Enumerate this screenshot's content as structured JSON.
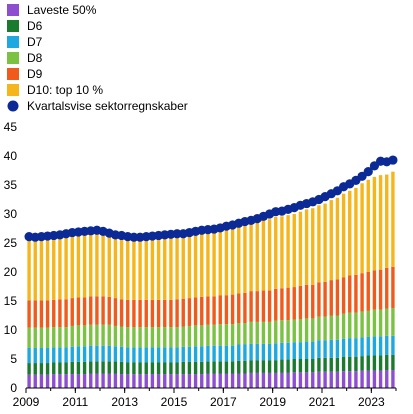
{
  "chart_data": {
    "type": "bar",
    "stacked": true,
    "title": "",
    "xlabel": "",
    "ylabel": "",
    "ylim": [
      0,
      45
    ],
    "yticks": [
      0,
      5,
      10,
      15,
      20,
      25,
      30,
      35,
      40,
      45
    ],
    "xtick_labels": [
      "2009",
      "2011",
      "2013",
      "2015",
      "2017",
      "2019",
      "2021",
      "2023"
    ],
    "legend_position": "top-left",
    "grid": false,
    "x": [
      "2009Q1",
      "2009Q2",
      "2009Q3",
      "2009Q4",
      "2010Q1",
      "2010Q2",
      "2010Q3",
      "2010Q4",
      "2011Q1",
      "2011Q2",
      "2011Q3",
      "2011Q4",
      "2012Q1",
      "2012Q2",
      "2012Q3",
      "2012Q4",
      "2013Q1",
      "2013Q2",
      "2013Q3",
      "2013Q4",
      "2014Q1",
      "2014Q2",
      "2014Q3",
      "2014Q4",
      "2015Q1",
      "2015Q2",
      "2015Q3",
      "2015Q4",
      "2016Q1",
      "2016Q2",
      "2016Q3",
      "2016Q4",
      "2017Q1",
      "2017Q2",
      "2017Q3",
      "2017Q4",
      "2018Q1",
      "2018Q2",
      "2018Q3",
      "2018Q4",
      "2019Q1",
      "2019Q2",
      "2019Q3",
      "2019Q4",
      "2020Q1",
      "2020Q2",
      "2020Q3",
      "2020Q4",
      "2021Q1",
      "2021Q2",
      "2021Q3",
      "2021Q4",
      "2022Q1",
      "2022Q2",
      "2022Q3",
      "2022Q4",
      "2023Q1",
      "2023Q2",
      "2023Q3",
      "2023Q4"
    ],
    "series": [
      {
        "name": "Laveste 50%",
        "type": "bar",
        "color": "#8d4fd0",
        "values": [
          2.3,
          2.3,
          2.3,
          2.3,
          2.4,
          2.4,
          2.4,
          2.4,
          2.4,
          2.4,
          2.5,
          2.5,
          2.5,
          2.5,
          2.5,
          2.4,
          2.4,
          2.4,
          2.4,
          2.4,
          2.4,
          2.4,
          2.4,
          2.4,
          2.4,
          2.4,
          2.4,
          2.4,
          2.4,
          2.5,
          2.5,
          2.5,
          2.5,
          2.5,
          2.5,
          2.5,
          2.6,
          2.6,
          2.6,
          2.6,
          2.6,
          2.6,
          2.6,
          2.7,
          2.7,
          2.7,
          2.7,
          2.8,
          2.8,
          2.8,
          2.8,
          2.9,
          2.9,
          2.9,
          3.0,
          3.0,
          3.0,
          3.0,
          3.1,
          3.1
        ]
      },
      {
        "name": "D6",
        "type": "bar",
        "color": "#1a7a2e",
        "values": [
          2.0,
          2.0,
          2.0,
          2.0,
          2.0,
          2.0,
          2.0,
          2.1,
          2.1,
          2.1,
          2.1,
          2.1,
          2.1,
          2.1,
          2.1,
          2.1,
          2.0,
          2.0,
          2.0,
          2.0,
          2.0,
          2.0,
          2.0,
          2.0,
          2.0,
          2.1,
          2.1,
          2.1,
          2.1,
          2.1,
          2.1,
          2.1,
          2.1,
          2.1,
          2.2,
          2.2,
          2.2,
          2.2,
          2.2,
          2.2,
          2.2,
          2.3,
          2.3,
          2.3,
          2.3,
          2.3,
          2.3,
          2.4,
          2.4,
          2.4,
          2.4,
          2.5,
          2.5,
          2.5,
          2.5,
          2.6,
          2.6,
          2.6,
          2.6,
          2.6
        ]
      },
      {
        "name": "D7",
        "type": "bar",
        "color": "#1ea8e0",
        "values": [
          2.6,
          2.6,
          2.6,
          2.6,
          2.6,
          2.6,
          2.6,
          2.6,
          2.7,
          2.7,
          2.7,
          2.7,
          2.7,
          2.7,
          2.6,
          2.6,
          2.6,
          2.6,
          2.6,
          2.6,
          2.6,
          2.6,
          2.6,
          2.6,
          2.6,
          2.6,
          2.6,
          2.7,
          2.7,
          2.7,
          2.7,
          2.7,
          2.7,
          2.7,
          2.8,
          2.8,
          2.8,
          2.8,
          2.8,
          2.8,
          2.9,
          2.9,
          2.9,
          2.9,
          2.9,
          3.0,
          3.0,
          3.0,
          3.0,
          3.1,
          3.1,
          3.1,
          3.2,
          3.2,
          3.2,
          3.2,
          3.3,
          3.3,
          3.3,
          3.3
        ]
      },
      {
        "name": "D8",
        "type": "bar",
        "color": "#7bc142",
        "values": [
          3.5,
          3.5,
          3.5,
          3.5,
          3.5,
          3.5,
          3.5,
          3.6,
          3.6,
          3.6,
          3.6,
          3.6,
          3.6,
          3.6,
          3.5,
          3.5,
          3.5,
          3.5,
          3.5,
          3.5,
          3.5,
          3.5,
          3.5,
          3.5,
          3.5,
          3.5,
          3.6,
          3.6,
          3.6,
          3.6,
          3.6,
          3.7,
          3.7,
          3.7,
          3.7,
          3.7,
          3.8,
          3.8,
          3.8,
          3.8,
          3.9,
          3.9,
          3.9,
          3.9,
          4.0,
          4.0,
          4.0,
          4.1,
          4.1,
          4.2,
          4.2,
          4.3,
          4.4,
          4.4,
          4.5,
          4.5,
          4.6,
          4.6,
          4.7,
          4.8
        ]
      },
      {
        "name": "D9",
        "type": "bar",
        "color": "#f05a1a",
        "values": [
          4.7,
          4.7,
          4.7,
          4.7,
          4.7,
          4.8,
          4.8,
          4.8,
          4.8,
          4.8,
          4.9,
          4.9,
          4.9,
          4.8,
          4.8,
          4.7,
          4.7,
          4.7,
          4.7,
          4.7,
          4.7,
          4.7,
          4.7,
          4.7,
          4.8,
          4.8,
          4.8,
          4.8,
          4.9,
          4.9,
          4.9,
          5.0,
          5.0,
          5.1,
          5.1,
          5.2,
          5.3,
          5.3,
          5.4,
          5.4,
          5.5,
          5.5,
          5.6,
          5.6,
          5.7,
          5.8,
          5.8,
          5.9,
          6.0,
          6.1,
          6.2,
          6.3,
          6.4,
          6.5,
          6.6,
          6.7,
          6.8,
          6.9,
          7.0,
          7.1
        ]
      },
      {
        "name": "D10: top 10 %",
        "type": "bar",
        "color": "#f7b51c",
        "values": [
          10.9,
          10.9,
          10.9,
          10.9,
          10.9,
          10.9,
          10.9,
          11.0,
          11.0,
          11.0,
          11.0,
          11.0,
          10.9,
          10.8,
          10.7,
          10.6,
          10.5,
          10.5,
          10.6,
          10.6,
          10.7,
          10.7,
          10.8,
          10.8,
          10.9,
          10.9,
          11.1,
          11.2,
          11.2,
          11.3,
          11.4,
          11.4,
          11.5,
          11.6,
          11.7,
          11.8,
          11.9,
          12.0,
          12.2,
          12.3,
          12.4,
          12.4,
          12.5,
          12.6,
          12.8,
          13.0,
          13.2,
          13.3,
          13.5,
          13.8,
          14.1,
          14.4,
          14.6,
          15.0,
          15.5,
          15.9,
          16.1,
          16.3,
          16.1,
          16.4
        ]
      },
      {
        "name": "Kvartalsvise sektorregnskaber",
        "type": "scatter",
        "color": "#0b2a96",
        "values": [
          26.1,
          26.0,
          26.1,
          26.2,
          26.3,
          26.4,
          26.6,
          26.8,
          26.9,
          27.0,
          27.1,
          27.2,
          27.0,
          26.7,
          26.4,
          26.3,
          26.1,
          26.0,
          26.0,
          26.1,
          26.2,
          26.3,
          26.4,
          26.5,
          26.6,
          26.6,
          26.8,
          27.0,
          27.2,
          27.3,
          27.4,
          27.6,
          27.9,
          28.1,
          28.4,
          28.7,
          28.9,
          29.2,
          29.6,
          30.0,
          30.4,
          30.5,
          30.8,
          31.1,
          31.5,
          31.8,
          32.1,
          32.5,
          33.0,
          33.5,
          34.0,
          34.7,
          35.2,
          35.8,
          36.5,
          37.3,
          38.3,
          39.1,
          39.0,
          39.3
        ]
      }
    ]
  }
}
